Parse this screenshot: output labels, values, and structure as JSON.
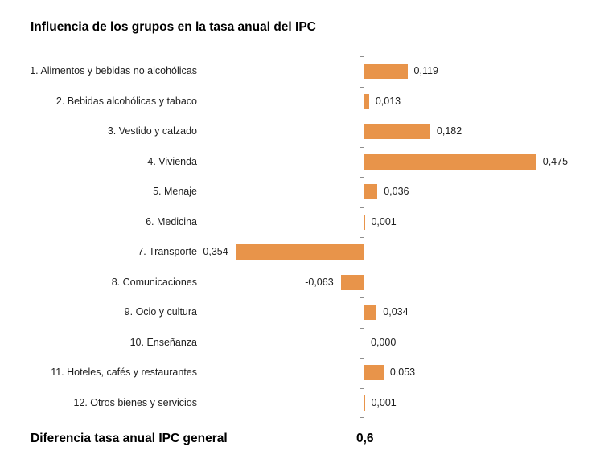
{
  "title": "Influencia de los grupos en la tasa anual del IPC",
  "chart_data": {
    "type": "bar",
    "orientation": "horizontal",
    "title": "Influencia de los grupos en la tasa anual del IPC",
    "categories": [
      "1. Alimentos y bebidas no alcohólicas",
      "2. Bebidas alcohólicas y tabaco",
      "3. Vestido y calzado",
      "4. Vivienda",
      "5. Menaje",
      "6. Medicina",
      "7. Transporte",
      "8. Comunicaciones",
      "9. Ocio y cultura",
      "10. Enseñanza",
      "11. Hoteles, cafés y restaurantes",
      "12. Otros bienes y servicios"
    ],
    "values": [
      0.119,
      0.013,
      0.182,
      0.475,
      0.036,
      0.001,
      -0.354,
      -0.063,
      0.034,
      0.0,
      0.053,
      0.001
    ],
    "value_labels": [
      "0,119",
      "0,013",
      "0,182",
      "0,475",
      "0,036",
      "0,001",
      "-0,354",
      "-0,063",
      "0,034",
      "0,000",
      "0,053",
      "0,001"
    ],
    "xlabel": "",
    "ylabel": "",
    "xlim": [
      -0.4,
      0.6
    ],
    "grid": false,
    "legend": false,
    "baseline": 0,
    "bar_color": "#E8944A",
    "axis_color": "#8E8E8E",
    "text_color": "#1F1F1F",
    "footer": {
      "label": "Diferencia tasa anual IPC general",
      "value": "0,6"
    }
  }
}
